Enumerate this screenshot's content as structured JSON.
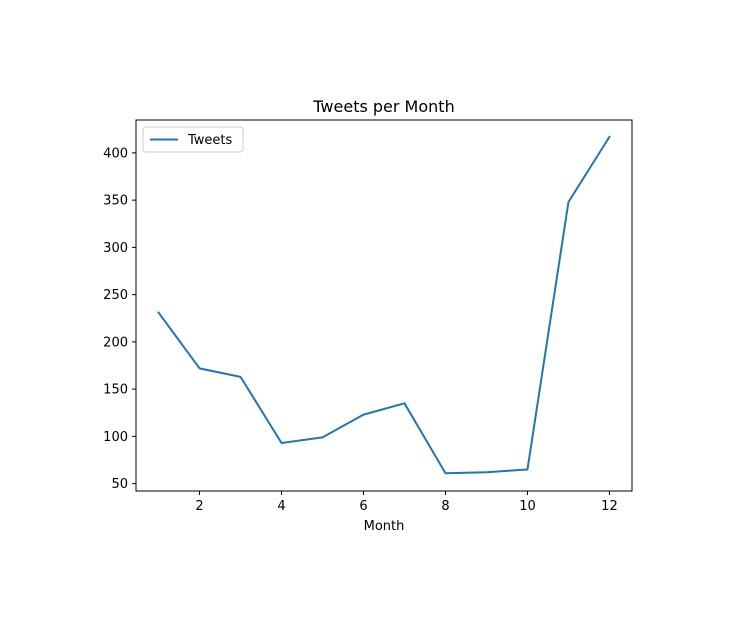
{
  "chart_data": {
    "type": "line",
    "title": "Tweets per Month",
    "xlabel": "Month",
    "ylabel": "",
    "x": [
      1,
      2,
      3,
      4,
      5,
      6,
      7,
      8,
      9,
      10,
      11,
      12
    ],
    "series": [
      {
        "name": "Tweets",
        "values": [
          231,
          172,
          163,
          93,
          99,
          123,
          135,
          61,
          62,
          65,
          348,
          417
        ],
        "color": "#1f77b4"
      }
    ],
    "xlim": [
      0.45,
      12.55
    ],
    "ylim": [
      42.2,
      434.8
    ],
    "xticks": [
      2,
      4,
      6,
      8,
      10,
      12
    ],
    "yticks": [
      50,
      100,
      150,
      200,
      250,
      300,
      350,
      400
    ],
    "grid": false,
    "legend_position": "upper-left"
  }
}
